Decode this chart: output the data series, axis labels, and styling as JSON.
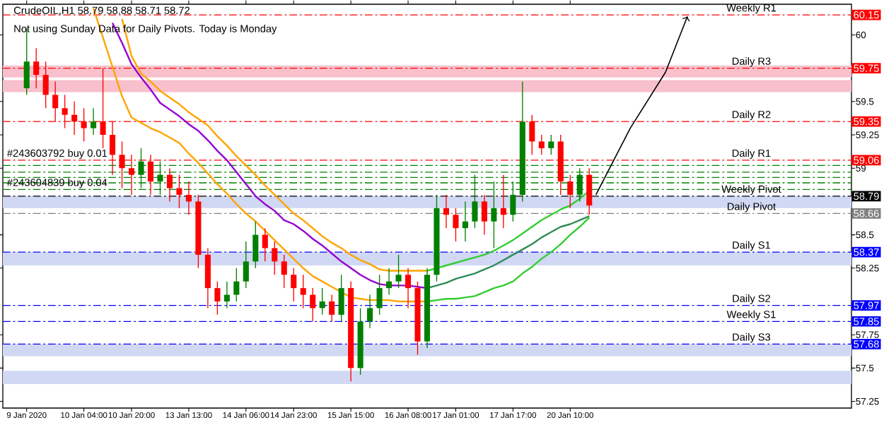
{
  "chart_data": {
    "type": "candlestick",
    "title": "CrudeOIL,H1 58.79 58.88 58.71 58.72",
    "subtitle": "Not using Sunday Data for Daily Pivots.  Today is Monday",
    "categories": [
      "9 Jan 2020",
      null,
      null,
      null,
      null,
      null,
      "10 Jan 04:00",
      null,
      null,
      null,
      null,
      "10 Jan 20:00",
      null,
      null,
      null,
      null,
      null,
      "13 Jan 13:00",
      null,
      null,
      null,
      null,
      null,
      "14 Jan 06:00",
      null,
      null,
      null,
      null,
      "14 Jan 23:00",
      null,
      null,
      null,
      null,
      null,
      "15 Jan 15:00",
      null,
      null,
      null,
      null,
      null,
      "16 Jan 08:00",
      null,
      null,
      null,
      null,
      "17 Jan 01:00",
      null,
      null,
      null,
      null,
      null,
      "17 Jan 17:00",
      null,
      null,
      null,
      null,
      null,
      "20 Jan 10:00",
      null,
      null,
      null,
      null,
      null,
      null,
      null,
      null,
      null,
      null,
      null,
      null,
      null,
      null,
      null,
      null,
      null,
      null,
      null,
      null,
      null,
      null,
      null,
      null,
      null,
      null,
      null,
      null,
      null
    ],
    "ohlc": [
      [
        59.6,
        60.05,
        59.55,
        59.8
      ],
      [
        59.8,
        59.9,
        59.6,
        59.7
      ],
      [
        59.7,
        59.8,
        59.45,
        59.55
      ],
      [
        59.55,
        59.65,
        59.35,
        59.45
      ],
      [
        59.45,
        59.55,
        59.3,
        59.4
      ],
      [
        59.4,
        59.5,
        59.25,
        59.35
      ],
      [
        59.35,
        59.45,
        59.2,
        59.3
      ],
      [
        59.3,
        59.45,
        59.25,
        59.35
      ],
      [
        59.35,
        59.75,
        59.15,
        59.25
      ],
      [
        59.25,
        59.35,
        58.95,
        59.1
      ],
      [
        59.1,
        59.2,
        58.85,
        59.0
      ],
      [
        59.0,
        59.1,
        58.8,
        58.95
      ],
      [
        58.95,
        59.15,
        58.85,
        59.05
      ],
      [
        59.05,
        59.1,
        58.8,
        58.9
      ],
      [
        58.9,
        59.05,
        58.8,
        58.95
      ],
      [
        58.95,
        59.0,
        58.75,
        58.85
      ],
      [
        58.85,
        58.95,
        58.7,
        58.8
      ],
      [
        58.8,
        58.9,
        58.65,
        58.75
      ],
      [
        58.75,
        58.8,
        58.25,
        58.35
      ],
      [
        58.35,
        58.4,
        57.95,
        58.1
      ],
      [
        58.1,
        58.15,
        57.9,
        58.0
      ],
      [
        58.0,
        58.15,
        57.95,
        58.05
      ],
      [
        58.05,
        58.25,
        58.0,
        58.15
      ],
      [
        58.15,
        58.45,
        58.1,
        58.3
      ],
      [
        58.3,
        58.6,
        58.25,
        58.5
      ],
      [
        58.5,
        58.55,
        58.3,
        58.4
      ],
      [
        58.4,
        58.45,
        58.2,
        58.3
      ],
      [
        58.3,
        58.35,
        58.1,
        58.2
      ],
      [
        58.2,
        58.25,
        58.0,
        58.1
      ],
      [
        58.1,
        58.2,
        57.95,
        58.05
      ],
      [
        58.05,
        58.1,
        57.85,
        57.95
      ],
      [
        57.95,
        58.1,
        57.9,
        58.0
      ],
      [
        58.0,
        58.05,
        57.85,
        57.9
      ],
      [
        57.9,
        58.2,
        57.85,
        58.1
      ],
      [
        58.1,
        58.15,
        57.4,
        57.5
      ],
      [
        57.5,
        57.95,
        57.45,
        57.85
      ],
      [
        57.85,
        58.05,
        57.8,
        57.95
      ],
      [
        57.95,
        58.2,
        57.9,
        58.1
      ],
      [
        58.1,
        58.25,
        58.05,
        58.15
      ],
      [
        58.15,
        58.35,
        58.1,
        58.2
      ],
      [
        58.2,
        58.25,
        57.95,
        58.1
      ],
      [
        58.1,
        58.15,
        57.6,
        57.7
      ],
      [
        57.7,
        58.25,
        57.65,
        58.2
      ],
      [
        58.2,
        58.8,
        58.15,
        58.7
      ],
      [
        58.7,
        58.8,
        58.55,
        58.65
      ],
      [
        58.65,
        58.7,
        58.45,
        58.55
      ],
      [
        58.55,
        58.75,
        58.45,
        58.6
      ],
      [
        58.6,
        58.95,
        58.55,
        58.75
      ],
      [
        58.75,
        58.8,
        58.5,
        58.6
      ],
      [
        58.6,
        58.9,
        58.4,
        58.7
      ],
      [
        58.7,
        58.95,
        58.55,
        58.65
      ],
      [
        58.65,
        58.9,
        58.6,
        58.8
      ],
      [
        58.8,
        59.65,
        58.75,
        59.35
      ],
      [
        59.35,
        59.4,
        59.1,
        59.2
      ],
      [
        59.2,
        59.25,
        59.1,
        59.15
      ],
      [
        59.15,
        59.25,
        59.1,
        59.2
      ],
      [
        59.2,
        59.25,
        58.8,
        58.9
      ],
      [
        58.9,
        58.95,
        58.7,
        58.8
      ],
      [
        58.8,
        59.0,
        58.75,
        58.95
      ],
      [
        58.95,
        59.0,
        58.65,
        58.72
      ],
      null,
      null,
      null,
      null,
      null,
      null,
      null,
      null,
      null,
      null,
      null,
      null,
      null,
      null,
      null,
      null,
      null,
      null,
      null,
      null,
      null,
      null,
      null,
      null,
      null,
      null,
      null
    ],
    "series": [
      {
        "type": "line",
        "color": "#ffa500",
        "values": [
          null,
          null,
          null,
          null,
          null,
          null,
          null,
          null,
          null,
          null,
          60.12,
          59.84,
          59.71,
          59.65,
          59.58,
          59.53,
          59.48,
          59.42,
          59.37,
          59.32,
          59.24,
          59.17,
          59.09,
          59.02,
          58.95,
          58.87,
          58.8,
          58.73,
          58.66,
          58.61,
          58.55,
          58.49,
          58.44,
          58.4,
          58.35,
          58.31,
          58.28,
          58.24,
          58.23,
          58.23,
          58.23,
          58.23,
          58.23,
          null,
          null,
          null,
          null,
          null,
          null,
          null,
          null,
          null,
          null,
          null,
          null,
          null,
          null,
          null,
          null,
          null,
          null,
          null,
          null,
          null,
          null,
          null,
          null,
          null,
          null,
          null,
          null,
          null,
          null,
          null,
          null,
          null,
          null,
          null,
          null,
          null,
          null,
          null,
          null,
          null,
          null,
          null,
          null
        ]
      },
      {
        "type": "line",
        "color": "#9400d3",
        "values": [
          null,
          null,
          null,
          null,
          null,
          null,
          null,
          null,
          null,
          60.09,
          59.94,
          59.78,
          59.68,
          59.59,
          59.49,
          59.44,
          59.39,
          59.33,
          59.28,
          59.21,
          59.13,
          59.06,
          58.97,
          58.88,
          58.79,
          58.73,
          58.68,
          58.61,
          58.58,
          58.53,
          58.47,
          58.42,
          58.36,
          58.3,
          58.25,
          58.2,
          58.16,
          58.13,
          58.12,
          58.12,
          58.12,
          58.11,
          58.1,
          null,
          null,
          null,
          null,
          null,
          null,
          null,
          null,
          null,
          null,
          null,
          null,
          null,
          null,
          null,
          null,
          null,
          null,
          null,
          null,
          null,
          null,
          null,
          null,
          null,
          null,
          null,
          null,
          null,
          null,
          null,
          null,
          null,
          null,
          null,
          null,
          null,
          null,
          null,
          null,
          null,
          null,
          null,
          null
        ]
      },
      {
        "type": "line",
        "color": "#ffa500",
        "values": [
          null,
          null,
          null,
          null,
          null,
          null,
          null,
          60.2,
          59.98,
          59.76,
          59.54,
          59.38,
          59.34,
          59.3,
          59.27,
          59.23,
          59.19,
          59.11,
          59.04,
          58.96,
          58.88,
          58.81,
          58.73,
          58.66,
          58.6,
          58.53,
          58.46,
          58.39,
          58.32,
          58.25,
          58.19,
          58.15,
          58.11,
          58.07,
          58.03,
          58.02,
          58.01,
          58.01,
          58.01,
          58.0,
          58.0,
          58.0,
          58.0,
          null,
          null,
          null,
          null,
          null,
          null,
          null,
          null,
          null,
          null,
          null,
          null,
          null,
          null,
          null,
          null,
          null,
          null,
          null,
          null,
          null,
          null,
          null,
          null,
          null,
          null,
          null,
          null,
          null,
          null,
          null,
          null,
          null,
          null,
          null,
          null,
          null,
          null,
          null,
          null,
          null,
          null,
          null,
          null
        ]
      },
      {
        "type": "line",
        "color": "#32cd32",
        "values": [
          null,
          null,
          null,
          null,
          null,
          null,
          null,
          null,
          null,
          null,
          null,
          null,
          null,
          null,
          null,
          null,
          null,
          null,
          null,
          null,
          null,
          null,
          null,
          null,
          null,
          null,
          null,
          null,
          null,
          null,
          null,
          null,
          null,
          null,
          null,
          null,
          null,
          null,
          null,
          null,
          null,
          null,
          58.23,
          58.25,
          58.27,
          58.29,
          58.31,
          58.33,
          58.35,
          58.38,
          58.42,
          58.46,
          58.51,
          58.56,
          58.61,
          58.65,
          58.69,
          58.72,
          58.77,
          58.83,
          null,
          null,
          null,
          null,
          null,
          null,
          null,
          null,
          null,
          null,
          null,
          null,
          null,
          null,
          null,
          null,
          null,
          null,
          null,
          null,
          null,
          null,
          null,
          null,
          null,
          null,
          null
        ]
      },
      {
        "type": "line",
        "color": "#2e8b57",
        "values": [
          null,
          null,
          null,
          null,
          null,
          null,
          null,
          null,
          null,
          null,
          null,
          null,
          null,
          null,
          null,
          null,
          null,
          null,
          null,
          null,
          null,
          null,
          null,
          null,
          null,
          null,
          null,
          null,
          null,
          null,
          null,
          null,
          null,
          null,
          null,
          null,
          null,
          null,
          null,
          null,
          null,
          null,
          58.1,
          58.12,
          58.14,
          58.17,
          58.19,
          58.21,
          58.24,
          58.27,
          58.31,
          58.35,
          58.39,
          58.43,
          58.48,
          58.52,
          58.56,
          58.58,
          58.61,
          58.64,
          null,
          null,
          null,
          null,
          null,
          null,
          null,
          null,
          null,
          null,
          null,
          null,
          null,
          null,
          null,
          null,
          null,
          null,
          null,
          null,
          null,
          null,
          null,
          null,
          null,
          null,
          null
        ]
      },
      {
        "type": "line",
        "color": "#32cd32",
        "values": [
          null,
          null,
          null,
          null,
          null,
          null,
          null,
          null,
          null,
          null,
          null,
          null,
          null,
          null,
          null,
          null,
          null,
          null,
          null,
          null,
          null,
          null,
          null,
          null,
          null,
          null,
          null,
          null,
          null,
          null,
          null,
          null,
          null,
          null,
          null,
          null,
          null,
          null,
          null,
          null,
          null,
          null,
          58.0,
          58.01,
          58.02,
          58.02,
          58.03,
          58.04,
          58.07,
          58.1,
          58.12,
          58.15,
          58.21,
          58.26,
          58.32,
          58.37,
          58.43,
          58.5,
          58.56,
          58.63,
          null,
          null,
          null,
          null,
          null,
          null,
          null,
          null,
          null,
          null,
          null,
          null,
          null,
          null,
          null,
          null,
          null,
          null,
          null,
          null,
          null,
          null,
          null,
          null,
          null,
          null,
          null
        ]
      }
    ],
    "bands": [
      {
        "axis": "y",
        "from": 59.68,
        "to": 59.77,
        "color": "#f8c0cc"
      },
      {
        "axis": "y",
        "from": 59.57,
        "to": 59.66,
        "color": "#f8c0cc"
      },
      {
        "axis": "y",
        "from": 58.7,
        "to": 58.79,
        "color": "#d0d8f4"
      },
      {
        "axis": "y",
        "from": 58.27,
        "to": 58.37,
        "color": "#d0d8f4"
      },
      {
        "axis": "y",
        "from": 57.59,
        "to": 57.68,
        "color": "#d0d8f4"
      },
      {
        "axis": "y",
        "from": 57.38,
        "to": 57.48,
        "color": "#d0d8f4"
      }
    ],
    "ref_lines": [
      {
        "axis": "y",
        "value": 60.15,
        "label": "60.15",
        "color": "#ff0000",
        "line_style": "dashed"
      },
      {
        "axis": "y",
        "value": 59.75,
        "label": "59.75",
        "color": "#ff0000",
        "line_style": "dashed"
      },
      {
        "axis": "y",
        "value": 59.35,
        "label": "59.35",
        "color": "#ff0000",
        "line_style": "dashed"
      },
      {
        "axis": "y",
        "value": 59.06,
        "label": "59.06",
        "color": "#ff0000",
        "line_style": "dashed"
      },
      {
        "axis": "y",
        "value": 59.02,
        "color": "#008000",
        "line_style": "dashed"
      },
      {
        "axis": "y",
        "value": 58.97,
        "color": "#008000",
        "line_style": "dashed"
      },
      {
        "axis": "y",
        "value": 58.93,
        "color": "#008000",
        "line_style": "dashed"
      },
      {
        "axis": "y",
        "value": 58.89,
        "color": "#008000",
        "line_style": "dashed"
      },
      {
        "axis": "y",
        "value": 58.84,
        "color": "#008000",
        "line_style": "dashed"
      },
      {
        "axis": "y",
        "value": 58.79,
        "label": "58.79",
        "color": "#000000",
        "line_style": "dashed"
      },
      {
        "axis": "y",
        "value": 58.66,
        "label": "58.66",
        "color": "#808080",
        "line_style": "dashed"
      },
      {
        "axis": "y",
        "value": 58.37,
        "label": "58.37",
        "color": "#0000ff",
        "line_style": "dashed"
      },
      {
        "axis": "y",
        "value": 57.97,
        "label": "57.97",
        "color": "#0000ff",
        "line_style": "dashed"
      },
      {
        "axis": "y",
        "value": 57.85,
        "label": "57.85",
        "color": "#0000ff",
        "line_style": "dashed"
      },
      {
        "axis": "y",
        "value": 57.68,
        "label": "57.68",
        "color": "#0000ff",
        "line_style": "dashed"
      }
    ],
    "annotations": [
      {
        "text": "#243603792 buy 0.01",
        "y": 59.06
      },
      {
        "text": "#243604839 buy 0.04",
        "y": 58.84
      },
      {
        "text": "Weekly R1",
        "y": 60.15
      },
      {
        "text": "Daily R3",
        "y": 59.75
      },
      {
        "text": "Daily R2",
        "y": 59.35
      },
      {
        "text": "Daily R1",
        "y": 59.06
      },
      {
        "text": "Weekly Pivot",
        "y": 58.79
      },
      {
        "text": "Daily Pivot",
        "y": 58.66
      },
      {
        "text": "Daily S1",
        "y": 58.37
      },
      {
        "text": "Daily S2",
        "y": 57.97
      },
      {
        "text": "Weekly S1",
        "y": 57.85
      },
      {
        "text": "Daily S3",
        "y": 57.68
      }
    ],
    "ylim": [
      57.2,
      60.23
    ],
    "yticks": [
      57.25,
      57.5,
      57.75,
      58.25,
      58.5,
      59,
      59.25,
      59.5,
      60
    ],
    "grid": false
  }
}
